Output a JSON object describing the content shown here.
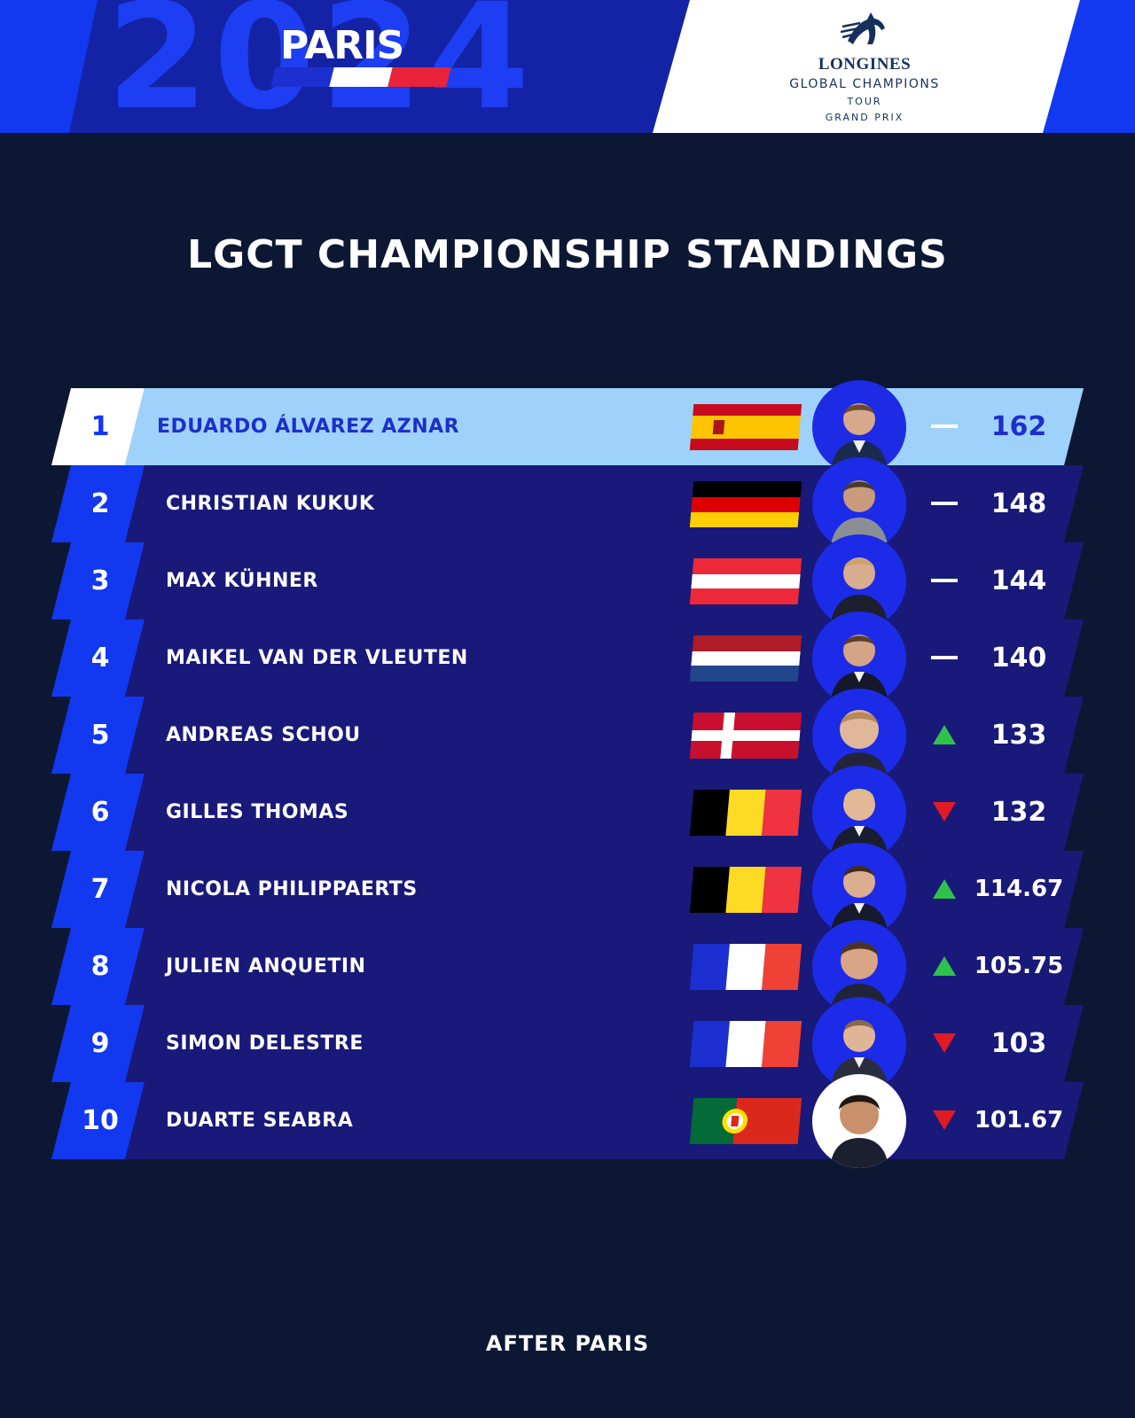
{
  "header": {
    "year": "2024",
    "city": "PARIS",
    "logo": {
      "brand": "LONGINES",
      "line2": "GLOBAL CHAMPIONS",
      "line3": "TOUR",
      "line4": "GRAND PRIX"
    }
  },
  "title": "LGCT CHAMPIONSHIP STANDINGS",
  "footer": "AFTER PARIS",
  "standings": [
    {
      "rank": "1",
      "name": "EDUARDO ÁLVAREZ AZNAR",
      "flag": "spain-flag",
      "trend": "unchanged",
      "points": "162"
    },
    {
      "rank": "2",
      "name": "CHRISTIAN KUKUK",
      "flag": "germany-flag",
      "trend": "unchanged",
      "points": "148"
    },
    {
      "rank": "3",
      "name": "MAX KÜHNER",
      "flag": "austria-flag",
      "trend": "unchanged",
      "points": "144"
    },
    {
      "rank": "4",
      "name": "MAIKEL VAN DER VLEUTEN",
      "flag": "netherlands-flag",
      "trend": "unchanged",
      "points": "140"
    },
    {
      "rank": "5",
      "name": "ANDREAS SCHOU",
      "flag": "denmark-flag",
      "trend": "up",
      "points": "133"
    },
    {
      "rank": "6",
      "name": "GILLES THOMAS",
      "flag": "belgium-flag",
      "trend": "down",
      "points": "132"
    },
    {
      "rank": "7",
      "name": "NICOLA PHILIPPAERTS",
      "flag": "belgium-flag",
      "trend": "up",
      "points": "114.67"
    },
    {
      "rank": "8",
      "name": "JULIEN ANQUETIN",
      "flag": "france-flag",
      "trend": "up",
      "points": "105.75"
    },
    {
      "rank": "9",
      "name": "SIMON DELESTRE",
      "flag": "france-flag",
      "trend": "down",
      "points": "103"
    },
    {
      "rank": "10",
      "name": "DUARTE SEABRA",
      "flag": "portugal-flag",
      "trend": "down",
      "points": "101.67"
    }
  ],
  "colors": {
    "background": "#0c1833",
    "header_blue": "#1238f0",
    "row_bar": "#19197a",
    "leader_bar": "#9fd2fb",
    "trend_up": "#2fc24a",
    "trend_down": "#e01b24"
  }
}
